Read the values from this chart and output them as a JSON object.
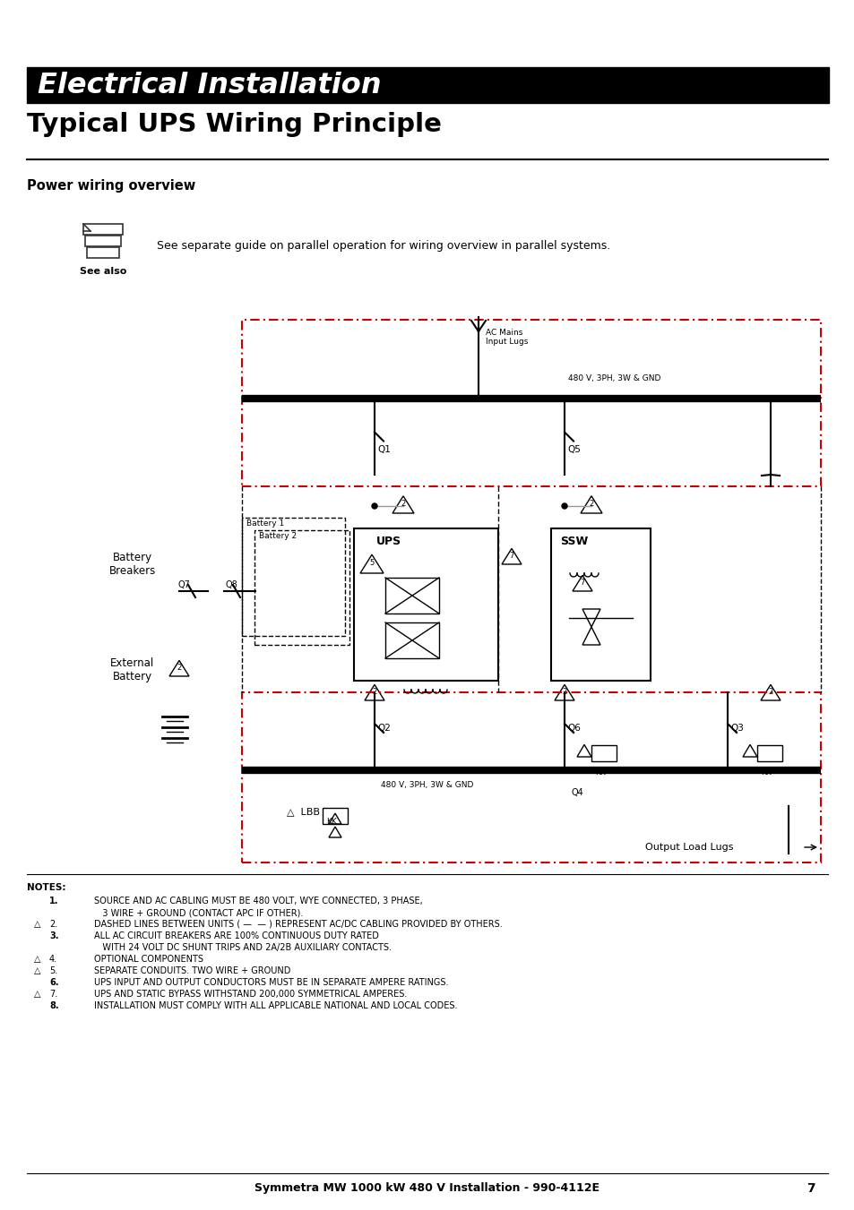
{
  "bg_color": "#ffffff",
  "title_bar_color": "#000000",
  "title_bar_text": "Electrical Installation",
  "title_bar_text_color": "#ffffff",
  "subtitle": "Typical UPS Wiring Principle",
  "section_title": "Power wiring overview",
  "see_also_text": "See separate guide on parallel operation for wiring overview in parallel systems.",
  "footer_text": "Symmetra MW 1000 kW 480 V Installation - 990-4112E",
  "footer_page": "7"
}
